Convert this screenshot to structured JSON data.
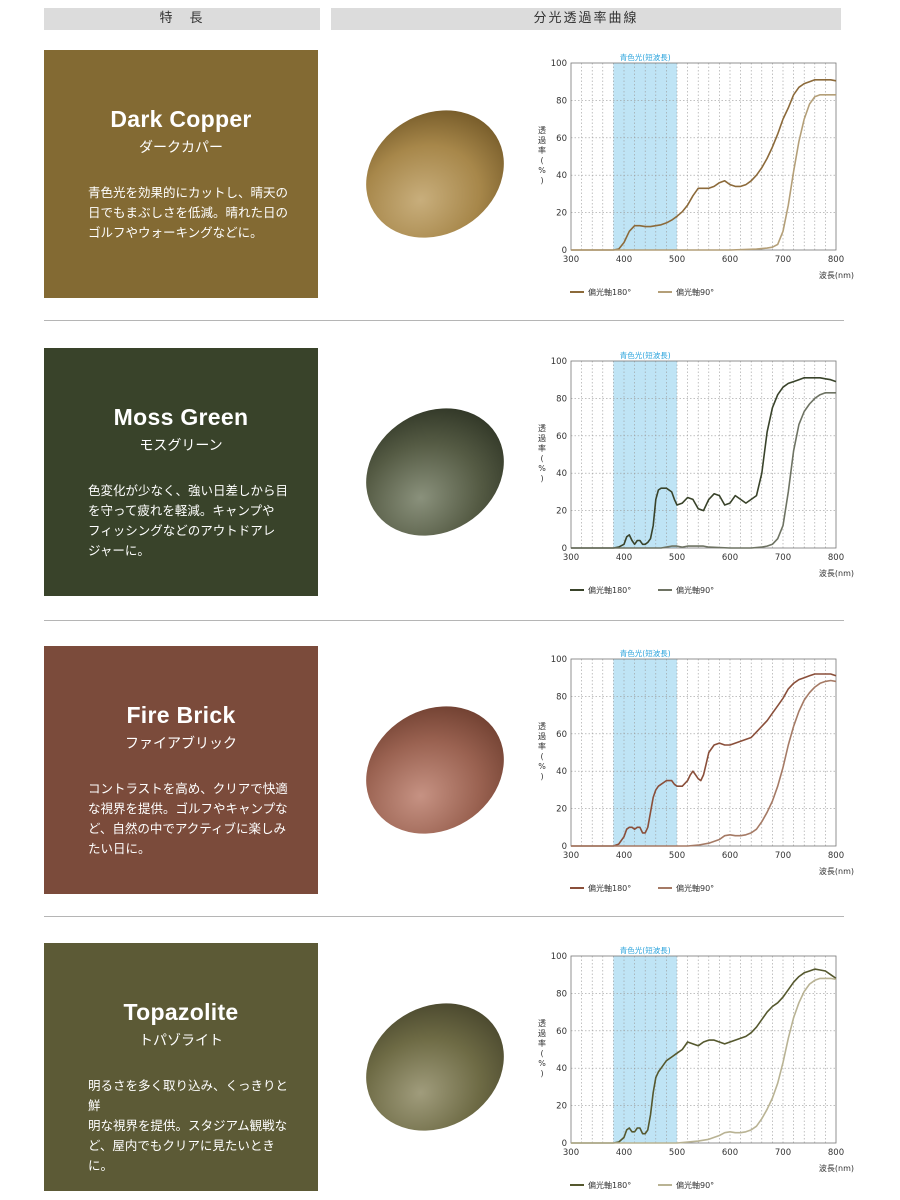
{
  "header": {
    "left": "特　長",
    "right": "分光透過率曲線"
  },
  "products": [
    {
      "name": "Dark Copper",
      "kana": "ダークカパー",
      "description": "青色光を効果的にカットし、晴天の\n日でもまぶしさを低減。晴れた日の\nゴルフやウォーキングなどに。",
      "card_color": "#836a33",
      "lens_colors": [
        "#c8ae7c",
        "#a7874a",
        "#6e5424"
      ]
    },
    {
      "name": "Moss Green",
      "kana": "モスグリーン",
      "description": "色変化が少なく、強い日差しから目\nを守って疲れを軽減。キャンプや\nフィッシングなどのアウトドアレ\nジャーに。",
      "card_color": "#39432a",
      "lens_colors": [
        "#8a917c",
        "#555b44",
        "#2b3122"
      ]
    },
    {
      "name": "Fire Brick",
      "kana": "ファイアブリック",
      "description": "コントラストを高め、クリアで快適\nな視界を提供。ゴルフやキャンプな\nど、自然の中でアクティブに楽しみ\nたい日に。",
      "card_color": "#7b4b3b",
      "lens_colors": [
        "#c69283",
        "#9a6251",
        "#6a3b2c"
      ]
    },
    {
      "name": "Topazolite",
      "kana": "トパゾライト",
      "description": "明るさを多く取り込み、くっきりと鮮\n明な視界を提供。スタジアム観戦な\nど、屋内でもクリアに見たいときに。",
      "card_color": "#5c5a36",
      "lens_colors": [
        "#a09c7c",
        "#6e6b45",
        "#44422a"
      ]
    }
  ],
  "chart_data": [
    {
      "type": "line",
      "xlabel": "波長(nm)",
      "ylabel": "透過率(%)",
      "xlim": [
        300,
        800
      ],
      "ylim": [
        0,
        100
      ],
      "xticks": [
        300,
        400,
        500,
        600,
        700,
        800
      ],
      "yticks": [
        0,
        20,
        40,
        60,
        80,
        100
      ],
      "grid": true,
      "legend": "bottom",
      "band": {
        "label": "青色光(短波長)",
        "x": [
          380,
          500
        ],
        "color": "#bfe4f5",
        "label_color": "#2aa3dc"
      },
      "series": [
        {
          "name": "偏光軸180°",
          "color": "#8c6a3a",
          "x": [
            300,
            380,
            390,
            400,
            410,
            420,
            430,
            440,
            450,
            460,
            470,
            480,
            490,
            500,
            510,
            520,
            530,
            540,
            550,
            560,
            570,
            580,
            590,
            600,
            610,
            620,
            630,
            640,
            650,
            660,
            670,
            680,
            690,
            700,
            710,
            720,
            730,
            740,
            750,
            760,
            770,
            780,
            790,
            800
          ],
          "y": [
            0,
            0,
            0.5,
            4,
            10,
            13,
            13,
            12.5,
            12.5,
            13,
            13.5,
            14.5,
            16,
            18,
            20.5,
            24,
            29,
            33,
            33,
            33,
            34,
            36,
            37,
            35,
            34,
            34,
            35,
            37,
            40,
            44,
            49,
            55,
            62,
            70,
            76,
            83,
            87,
            89,
            90,
            91,
            91,
            91,
            91,
            90.5
          ]
        },
        {
          "name": "偏光軸90°",
          "color": "#b49f78",
          "x": [
            300,
            500,
            600,
            650,
            670,
            680,
            690,
            700,
            710,
            720,
            730,
            740,
            750,
            760,
            770,
            780,
            790,
            800
          ],
          "y": [
            0,
            0,
            0,
            0.5,
            1,
            1.5,
            3,
            10,
            24,
            42,
            58,
            70,
            78,
            82,
            83,
            83,
            83,
            83
          ]
        }
      ]
    },
    {
      "type": "line",
      "xlabel": "波長(nm)",
      "ylabel": "透過率(%)",
      "xlim": [
        300,
        800
      ],
      "ylim": [
        0,
        100
      ],
      "xticks": [
        300,
        400,
        500,
        600,
        700,
        800
      ],
      "yticks": [
        0,
        20,
        40,
        60,
        80,
        100
      ],
      "grid": true,
      "legend": "bottom",
      "band": {
        "label": "青色光(短波長)",
        "x": [
          380,
          500
        ],
        "color": "#bfe4f5",
        "label_color": "#2aa3dc"
      },
      "series": [
        {
          "name": "偏光軸180°",
          "color": "#39432a",
          "x": [
            300,
            380,
            390,
            400,
            405,
            410,
            415,
            420,
            425,
            430,
            435,
            440,
            445,
            450,
            455,
            460,
            465,
            470,
            480,
            490,
            495,
            500,
            510,
            520,
            530,
            540,
            550,
            560,
            570,
            580,
            590,
            600,
            610,
            620,
            630,
            640,
            650,
            660,
            670,
            680,
            690,
            700,
            710,
            720,
            730,
            740,
            750,
            760,
            770,
            780,
            790,
            800
          ],
          "y": [
            0,
            0,
            0.5,
            2,
            6,
            7,
            4,
            2,
            4,
            4,
            2,
            2,
            3,
            5,
            12,
            26,
            31,
            32,
            32,
            30,
            26,
            23,
            24,
            27,
            26,
            21,
            20,
            26,
            29,
            28,
            23,
            24,
            28,
            26,
            24,
            26,
            28,
            40,
            62,
            75,
            82,
            86,
            88,
            89,
            90,
            91,
            91,
            91,
            91,
            90.5,
            90,
            89
          ]
        },
        {
          "name": "偏光軸90°",
          "color": "#6e7363",
          "x": [
            300,
            470,
            480,
            490,
            500,
            510,
            520,
            530,
            540,
            550,
            560,
            600,
            640,
            660,
            670,
            680,
            690,
            700,
            710,
            720,
            730,
            740,
            750,
            760,
            770,
            780,
            790,
            800
          ],
          "y": [
            0,
            0,
            0.5,
            1,
            1,
            0.5,
            1,
            1,
            1,
            1,
            0.5,
            0,
            0,
            0.5,
            1,
            2,
            5,
            12,
            30,
            52,
            66,
            73,
            77,
            80,
            82,
            83,
            83,
            83
          ]
        }
      ]
    },
    {
      "type": "line",
      "xlabel": "波長(nm)",
      "ylabel": "透過率(%)",
      "xlim": [
        300,
        800
      ],
      "ylim": [
        0,
        100
      ],
      "xticks": [
        300,
        400,
        500,
        600,
        700,
        800
      ],
      "yticks": [
        0,
        20,
        40,
        60,
        80,
        100
      ],
      "grid": true,
      "legend": "bottom",
      "band": {
        "label": "青色光(短波長)",
        "x": [
          380,
          500
        ],
        "color": "#bfe4f5",
        "label_color": "#2aa3dc"
      },
      "series": [
        {
          "name": "偏光軸180°",
          "color": "#8a4f3a",
          "x": [
            300,
            380,
            390,
            400,
            405,
            410,
            415,
            420,
            425,
            430,
            435,
            440,
            445,
            450,
            455,
            460,
            465,
            470,
            480,
            490,
            495,
            500,
            510,
            520,
            525,
            530,
            535,
            540,
            545,
            550,
            555,
            560,
            570,
            580,
            590,
            600,
            610,
            620,
            630,
            640,
            650,
            660,
            670,
            680,
            690,
            700,
            710,
            720,
            730,
            740,
            750,
            760,
            770,
            780,
            790,
            800
          ],
          "y": [
            0,
            0,
            1,
            5,
            9,
            10,
            10,
            9,
            10,
            10,
            7,
            7,
            10,
            18,
            26,
            30,
            32,
            33,
            35,
            35,
            33,
            32,
            32,
            35,
            38,
            40,
            38,
            36,
            35,
            38,
            44,
            50,
            54,
            55,
            54,
            54,
            55,
            56,
            57,
            58,
            61,
            64,
            67,
            71,
            75,
            79,
            84,
            87,
            89,
            90,
            91,
            92,
            92,
            92,
            92,
            91
          ]
        },
        {
          "name": "偏光軸90°",
          "color": "#a57a65",
          "x": [
            300,
            500,
            520,
            540,
            560,
            580,
            590,
            600,
            610,
            620,
            630,
            640,
            650,
            660,
            670,
            680,
            690,
            700,
            710,
            720,
            730,
            740,
            750,
            760,
            770,
            780,
            790,
            800
          ],
          "y": [
            0,
            0,
            0,
            0.5,
            1.5,
            3.5,
            5.5,
            6,
            5.5,
            5.5,
            6,
            7,
            9,
            13,
            18,
            24,
            32,
            42,
            54,
            64,
            72,
            78,
            82,
            85,
            87,
            88,
            88.5,
            88
          ]
        }
      ]
    },
    {
      "type": "line",
      "xlabel": "波長(nm)",
      "ylabel": "透過率(%)",
      "xlim": [
        300,
        800
      ],
      "ylim": [
        0,
        100
      ],
      "xticks": [
        300,
        400,
        500,
        600,
        700,
        800
      ],
      "yticks": [
        0,
        20,
        40,
        60,
        80,
        100
      ],
      "grid": true,
      "legend": "bottom",
      "band": {
        "label": "青色光(短波長)",
        "x": [
          380,
          500
        ],
        "color": "#bfe4f5",
        "label_color": "#2aa3dc"
      },
      "series": [
        {
          "name": "偏光軸180°",
          "color": "#55582e",
          "x": [
            300,
            380,
            390,
            400,
            405,
            410,
            415,
            420,
            425,
            430,
            435,
            440,
            445,
            450,
            455,
            460,
            465,
            470,
            480,
            490,
            500,
            510,
            520,
            530,
            540,
            550,
            560,
            570,
            580,
            590,
            600,
            610,
            620,
            630,
            640,
            650,
            660,
            670,
            680,
            690,
            700,
            710,
            720,
            730,
            740,
            750,
            760,
            770,
            780,
            790,
            800
          ],
          "y": [
            0,
            0,
            0.5,
            3,
            7,
            8,
            6,
            6,
            8,
            8,
            5,
            5,
            7,
            15,
            27,
            35,
            38,
            40,
            44,
            46,
            48,
            50,
            54,
            53,
            52,
            54,
            55,
            55,
            54,
            53,
            54,
            55,
            56,
            57,
            59,
            62,
            66,
            70,
            73,
            75,
            78,
            82,
            86,
            89,
            91,
            92,
            93,
            92.5,
            92,
            90,
            88
          ]
        },
        {
          "name": "偏光軸90°",
          "color": "#b9b394",
          "x": [
            300,
            500,
            520,
            540,
            560,
            580,
            590,
            600,
            610,
            620,
            630,
            640,
            650,
            660,
            670,
            680,
            690,
            700,
            710,
            720,
            730,
            740,
            750,
            760,
            770,
            780,
            790,
            800
          ],
          "y": [
            0,
            0,
            0.5,
            1,
            2,
            4,
            5.5,
            6,
            5.5,
            5.5,
            6,
            7,
            9,
            13,
            18,
            24,
            32,
            43,
            56,
            67,
            75,
            81,
            85,
            87,
            88,
            88,
            88,
            87.5
          ]
        }
      ]
    }
  ]
}
